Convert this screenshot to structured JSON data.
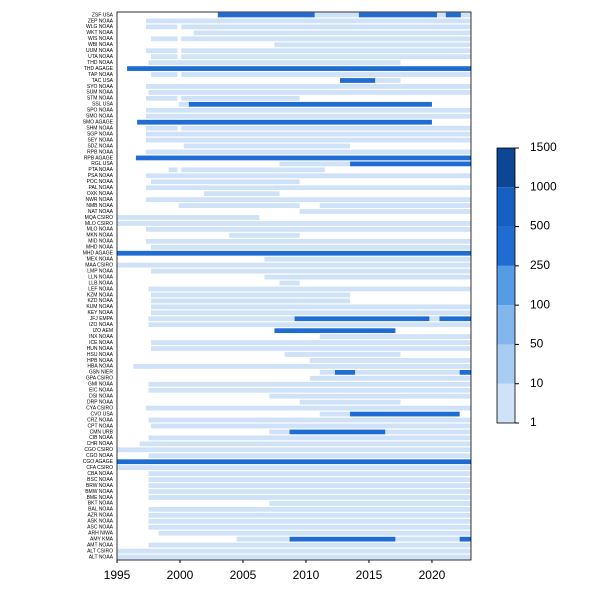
{
  "chart_data": {
    "type": "timeline",
    "xlim": [
      1995,
      2023.1
    ],
    "xticks": [
      1995,
      2000,
      2005,
      2010,
      2015,
      2020
    ],
    "colorbar": {
      "ticks": [
        1,
        10,
        50,
        100,
        250,
        500,
        1000,
        1500
      ],
      "colors": [
        "#cfe2f7",
        "#a9cdf2",
        "#82b6ec",
        "#559ce4",
        "#1f6cd3",
        "#1560c2",
        "#0c4694"
      ]
    },
    "rows": [
      {
        "label": "ZSF USA",
        "segments": [
          [
            2003,
            2010.7,
            300
          ],
          [
            2010.7,
            2014.2,
            1
          ],
          [
            2014.2,
            2020.4,
            300
          ],
          [
            2020.4,
            2021.1,
            1
          ],
          [
            2021.1,
            2022.3,
            300
          ],
          [
            2022.3,
            2023.1,
            1
          ]
        ]
      },
      {
        "label": "ZEP NOAA",
        "segments": [
          [
            1997.3,
            2023.1,
            1
          ]
        ]
      },
      {
        "label": "WLG NOAA",
        "segments": [
          [
            1997.3,
            1999.8,
            1
          ],
          [
            2000.1,
            2023.1,
            1
          ]
        ]
      },
      {
        "label": "WKT NOAA",
        "segments": [
          [
            2001.1,
            2023.1,
            1
          ]
        ]
      },
      {
        "label": "WIS NOAA",
        "segments": [
          [
            1997.7,
            1999.8,
            1
          ],
          [
            2000.1,
            2023.1,
            1
          ]
        ]
      },
      {
        "label": "WBI NOAA",
        "segments": [
          [
            2007.5,
            2023.1,
            1
          ]
        ]
      },
      {
        "label": "UUM NOAA",
        "segments": [
          [
            1997.3,
            1999.8,
            1
          ],
          [
            2000.1,
            2023.1,
            1
          ]
        ]
      },
      {
        "label": "UTA NOAA",
        "segments": [
          [
            1997.7,
            1999.8,
            1
          ],
          [
            2000.1,
            2023.1,
            1
          ]
        ]
      },
      {
        "label": "THD NOAA",
        "segments": [
          [
            1997.5,
            2017.5,
            1
          ]
        ]
      },
      {
        "label": "THD AGAGE",
        "segments": [
          [
            1995.8,
            2023.1,
            300
          ]
        ]
      },
      {
        "label": "TAP NOAA",
        "segments": [
          [
            1997.7,
            1999.8,
            1
          ],
          [
            2000.1,
            2023.1,
            1
          ]
        ]
      },
      {
        "label": "TAC USA",
        "segments": [
          [
            2012.7,
            2015.5,
            300
          ],
          [
            2015.5,
            2017.5,
            1
          ]
        ]
      },
      {
        "label": "SYO NOAA",
        "segments": [
          [
            1997.3,
            2023.1,
            1
          ]
        ]
      },
      {
        "label": "SUM NOAA",
        "segments": [
          [
            1997.5,
            2023.1,
            1
          ]
        ]
      },
      {
        "label": "STM NOAA",
        "segments": [
          [
            1997.3,
            1999.8,
            1
          ],
          [
            2000.1,
            2009.5,
            1
          ]
        ]
      },
      {
        "label": "SSL USA",
        "segments": [
          [
            1999.9,
            2000.7,
            1
          ],
          [
            2000.7,
            2020,
            300
          ]
        ]
      },
      {
        "label": "SPO NOAA",
        "segments": [
          [
            1997.3,
            2023.1,
            1
          ]
        ]
      },
      {
        "label": "SMO NOAA",
        "segments": [
          [
            1997.3,
            2023.1,
            1
          ]
        ]
      },
      {
        "label": "SMO AGAGE",
        "segments": [
          [
            1996.6,
            2020,
            300
          ]
        ]
      },
      {
        "label": "SHM NOAA",
        "segments": [
          [
            1997.3,
            1999.8,
            1
          ],
          [
            2000.1,
            2023.1,
            1
          ]
        ]
      },
      {
        "label": "SGP NOAA",
        "segments": [
          [
            1997.3,
            2023.1,
            1
          ]
        ]
      },
      {
        "label": "SEY NOAA",
        "segments": [
          [
            1997.3,
            2023.1,
            1
          ]
        ]
      },
      {
        "label": "SDZ NOAA",
        "segments": [
          [
            2000.3,
            2013.5,
            1
          ]
        ]
      },
      {
        "label": "RPB NOAA",
        "segments": [
          [
            1997.3,
            2023.1,
            1
          ]
        ]
      },
      {
        "label": "RPB AGAGE",
        "segments": [
          [
            1996.5,
            2023.1,
            300
          ]
        ]
      },
      {
        "label": "RGL USA",
        "segments": [
          [
            2007.9,
            2013.5,
            1
          ],
          [
            2013.5,
            2023.1,
            300
          ]
        ]
      },
      {
        "label": "PTA NOAA",
        "segments": [
          [
            1999.1,
            1999.8,
            1
          ],
          [
            2000.1,
            2011.5,
            1
          ]
        ]
      },
      {
        "label": "PSA NOAA",
        "segments": [
          [
            1997.3,
            2023.1,
            1
          ]
        ]
      },
      {
        "label": "POC NOAA",
        "segments": [
          [
            1997.7,
            2009.5,
            1
          ]
        ]
      },
      {
        "label": "PAL NOAA",
        "segments": [
          [
            1997.3,
            2023.1,
            1
          ]
        ]
      },
      {
        "label": "OXK NOAA",
        "segments": [
          [
            2001.9,
            2007.9,
            1
          ]
        ]
      },
      {
        "label": "NWR NOAA",
        "segments": [
          [
            1997.3,
            2023.1,
            1
          ]
        ]
      },
      {
        "label": "NMB NOAA",
        "segments": [
          [
            1999.9,
            2009.5,
            1
          ],
          [
            2011.1,
            2023.1,
            1
          ]
        ]
      },
      {
        "label": "NAT NOAA",
        "segments": [
          [
            2009.5,
            2023.1,
            1
          ]
        ]
      },
      {
        "label": "MQA CSIRO",
        "segments": [
          [
            1995,
            2006.3,
            1
          ]
        ]
      },
      {
        "label": "MLO CSIRO",
        "segments": [
          [
            1995,
            2023.1,
            1
          ]
        ]
      },
      {
        "label": "MLO NOAA",
        "segments": [
          [
            1997.3,
            2023.1,
            1
          ]
        ]
      },
      {
        "label": "MKN NOAA",
        "segments": [
          [
            2003.9,
            2009.5,
            1
          ]
        ]
      },
      {
        "label": "MID NOAA",
        "segments": [
          [
            1997.3,
            2023.1,
            1
          ]
        ]
      },
      {
        "label": "MHD NOAA",
        "segments": [
          [
            1997.7,
            2023.1,
            1
          ]
        ]
      },
      {
        "label": "MHD AGAGE",
        "segments": [
          [
            1995,
            2023.1,
            300
          ]
        ]
      },
      {
        "label": "MEX NOAA",
        "segments": [
          [
            2006.7,
            2023.1,
            1
          ]
        ]
      },
      {
        "label": "MAA CSIRO",
        "segments": [
          [
            1995,
            2023.1,
            1
          ]
        ]
      },
      {
        "label": "LMP NOAA",
        "segments": [
          [
            1997.7,
            2023.1,
            1
          ]
        ]
      },
      {
        "label": "LLN NOAA",
        "segments": [
          [
            2006.7,
            2023.1,
            1
          ]
        ]
      },
      {
        "label": "LLB NOAA",
        "segments": [
          [
            2007.9,
            2009.5,
            1
          ]
        ]
      },
      {
        "label": "LEF NOAA",
        "segments": [
          [
            1997.5,
            2023.1,
            1
          ]
        ]
      },
      {
        "label": "KZM NOAA",
        "segments": [
          [
            1997.7,
            2013.5,
            1
          ]
        ]
      },
      {
        "label": "KZD NOAA",
        "segments": [
          [
            1997.7,
            2013.5,
            1
          ]
        ]
      },
      {
        "label": "KUM NOAA",
        "segments": [
          [
            1997.7,
            2023.1,
            1
          ]
        ]
      },
      {
        "label": "KEY NOAA",
        "segments": [
          [
            1997.7,
            2023.1,
            1
          ]
        ]
      },
      {
        "label": "JFJ EMPA",
        "segments": [
          [
            1997.5,
            2009.1,
            1
          ],
          [
            2009.1,
            2019.8,
            300
          ],
          [
            2019.8,
            2020.6,
            1
          ],
          [
            2020.6,
            2023.1,
            300
          ]
        ]
      },
      {
        "label": "IZO NOAA",
        "segments": [
          [
            1997.5,
            2023.1,
            1
          ]
        ]
      },
      {
        "label": "IZO AEM",
        "segments": [
          [
            2007.5,
            2017.1,
            300
          ]
        ]
      },
      {
        "label": "INX NOAA",
        "segments": [
          [
            2011.1,
            2023.1,
            1
          ]
        ]
      },
      {
        "label": "ICE NOAA",
        "segments": [
          [
            1997.7,
            2023.1,
            1
          ]
        ]
      },
      {
        "label": "HUN NOAA",
        "segments": [
          [
            1997.7,
            2023.1,
            1
          ]
        ]
      },
      {
        "label": "HSU NOAA",
        "segments": [
          [
            2008.3,
            2017.5,
            1
          ]
        ]
      },
      {
        "label": "HPB NOAA",
        "segments": [
          [
            2010.3,
            2023.1,
            1
          ]
        ]
      },
      {
        "label": "HBA NOAA",
        "segments": [
          [
            1996.3,
            2023.1,
            1
          ]
        ]
      },
      {
        "label": "GSN NIER",
        "segments": [
          [
            2011.1,
            2012.3,
            1
          ],
          [
            2012.3,
            2013.9,
            300
          ],
          [
            2013.9,
            2022.2,
            1
          ],
          [
            2022.2,
            2023.1,
            300
          ]
        ]
      },
      {
        "label": "GPA CSIRO",
        "segments": [
          [
            2010.3,
            2023.1,
            1
          ]
        ]
      },
      {
        "label": "GMI NOAA",
        "segments": [
          [
            1997.5,
            2023.1,
            1
          ]
        ]
      },
      {
        "label": "EIC NOAA",
        "segments": [
          [
            1997.5,
            2023.1,
            1
          ]
        ]
      },
      {
        "label": "DSI NOAA",
        "segments": [
          [
            2007.1,
            2023.1,
            1
          ]
        ]
      },
      {
        "label": "DRP NOAA",
        "segments": [
          [
            2009.5,
            2017.5,
            1
          ]
        ]
      },
      {
        "label": "CYA CSIRO",
        "segments": [
          [
            1997.3,
            2023.1,
            1
          ]
        ]
      },
      {
        "label": "CVO USA",
        "segments": [
          [
            2011.1,
            2013.5,
            1
          ],
          [
            2013.5,
            2022.2,
            300
          ]
        ]
      },
      {
        "label": "CRZ NOAA",
        "segments": [
          [
            1997.5,
            2023.1,
            1
          ]
        ]
      },
      {
        "label": "CPT NOAA",
        "segments": [
          [
            1997.7,
            2023.1,
            1
          ]
        ]
      },
      {
        "label": "CMN URB",
        "segments": [
          [
            2007.1,
            2008.7,
            1
          ],
          [
            2008.7,
            2016.3,
            300
          ],
          [
            2016.3,
            2023.1,
            1
          ]
        ]
      },
      {
        "label": "CIB NOAA",
        "segments": [
          [
            1997.5,
            2023.1,
            1
          ]
        ]
      },
      {
        "label": "CHR NOAA",
        "segments": [
          [
            1996.8,
            2023.1,
            1
          ]
        ]
      },
      {
        "label": "CGO CSIRO",
        "segments": [
          [
            1995,
            2023.1,
            1
          ]
        ]
      },
      {
        "label": "CGO NOAA",
        "segments": [
          [
            1997.5,
            2023.1,
            1
          ]
        ]
      },
      {
        "label": "CGO AGAGE",
        "segments": [
          [
            1995,
            2023.1,
            300
          ]
        ]
      },
      {
        "label": "CFA CSIRO",
        "segments": [
          [
            1995,
            2023.1,
            1
          ]
        ]
      },
      {
        "label": "CBA NOAA",
        "segments": [
          [
            1997.5,
            2023.1,
            1
          ]
        ]
      },
      {
        "label": "BSC NOAA",
        "segments": [
          [
            1997.5,
            2023.1,
            1
          ]
        ]
      },
      {
        "label": "BRW NOAA",
        "segments": [
          [
            1997.5,
            2023.1,
            1
          ]
        ]
      },
      {
        "label": "BMW NOAA",
        "segments": [
          [
            1997.5,
            2023.1,
            1
          ]
        ]
      },
      {
        "label": "BME NOAA",
        "segments": [
          [
            1997.5,
            2023.1,
            1
          ]
        ]
      },
      {
        "label": "BKT NOAA",
        "segments": [
          [
            2007.1,
            2023.1,
            1
          ]
        ]
      },
      {
        "label": "BAL NOAA",
        "segments": [
          [
            1997.5,
            2023.1,
            1
          ]
        ]
      },
      {
        "label": "AZR NOAA",
        "segments": [
          [
            1997.5,
            2023.1,
            1
          ]
        ]
      },
      {
        "label": "ASK NOAA",
        "segments": [
          [
            1997.5,
            2023.1,
            1
          ]
        ]
      },
      {
        "label": "ASC NOAA",
        "segments": [
          [
            1997.5,
            2023.1,
            1
          ]
        ]
      },
      {
        "label": "ARH NIWA",
        "segments": [
          [
            1998.3,
            2023.1,
            1
          ]
        ]
      },
      {
        "label": "AMY KMA",
        "segments": [
          [
            2004.5,
            2008.7,
            1
          ],
          [
            2008.7,
            2017.1,
            300
          ],
          [
            2017.1,
            2022.2,
            1
          ],
          [
            2022.2,
            2023.1,
            300
          ]
        ]
      },
      {
        "label": "AMT NOAA",
        "segments": [
          [
            1997.5,
            2023.1,
            1
          ]
        ]
      },
      {
        "label": "ALT CSIRO",
        "segments": [
          [
            1995,
            2023.1,
            1
          ]
        ]
      },
      {
        "label": "ALT NOAA",
        "segments": [
          [
            1995,
            2023.1,
            1
          ]
        ]
      }
    ]
  }
}
